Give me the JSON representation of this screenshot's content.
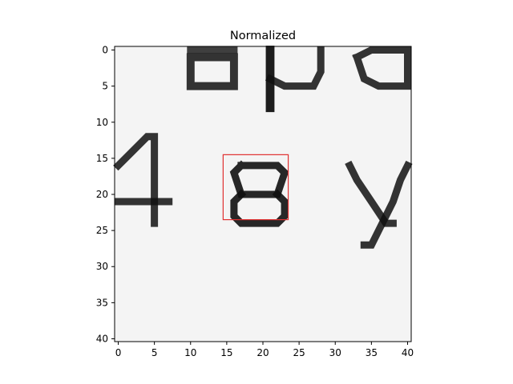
{
  "figure": {
    "title": "Normalized",
    "x_ticks": [
      "0",
      "5",
      "10",
      "15",
      "20",
      "25",
      "30",
      "35",
      "40"
    ],
    "y_ticks": [
      "0",
      "5",
      "10",
      "15",
      "20",
      "25",
      "30",
      "35",
      "40"
    ]
  },
  "image": {
    "grid_size": [
      41,
      41
    ],
    "colormap": "gray",
    "description_tags": [
      "handwritten-digit-crop",
      "bounding-box-highlight"
    ],
    "highlight_box": {
      "x0": 15,
      "y0": 15,
      "x1": 24,
      "y1": 24,
      "color": "#e03030"
    }
  },
  "colors": {
    "axis": "#000000",
    "highlight": "#e03030",
    "paper": "#f4f4f4",
    "ink": "#111111"
  }
}
